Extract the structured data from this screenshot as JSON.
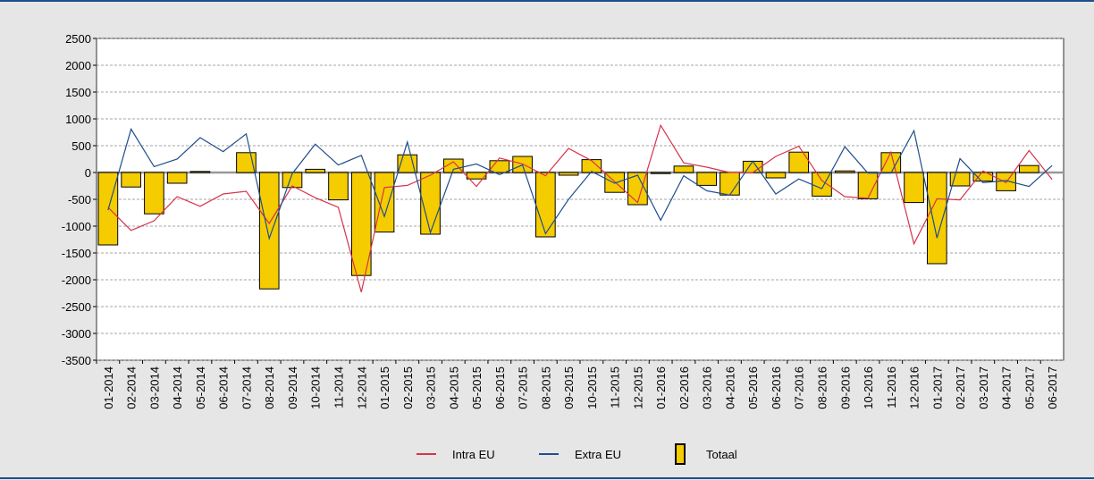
{
  "chart_data": {
    "type": "bar_line",
    "categories": [
      "01-2014",
      "02-2014",
      "03-2014",
      "04-2014",
      "05-2014",
      "06-2014",
      "07-2014",
      "08-2014",
      "09-2014",
      "10-2014",
      "11-2014",
      "12-2014",
      "01-2015",
      "02-2015",
      "03-2015",
      "04-2015",
      "05-2015",
      "06-2015",
      "07-2015",
      "08-2015",
      "09-2015",
      "10-2015",
      "11-2015",
      "12-2015",
      "01-2016",
      "02-2016",
      "03-2016",
      "04-2016",
      "05-2016",
      "06-2016",
      "07-2016",
      "08-2016",
      "09-2016",
      "10-2016",
      "11-2016",
      "12-2016",
      "01-2017",
      "02-2017",
      "03-2017",
      "04-2017",
      "05-2017",
      "06-2017"
    ],
    "series": [
      {
        "name": "Intra EU",
        "type": "line",
        "color": "#d6334a",
        "values": [
          -650,
          -1080,
          -900,
          -450,
          -630,
          -400,
          -350,
          -950,
          -250,
          -470,
          -650,
          -2230,
          -280,
          -240,
          -50,
          200,
          -260,
          270,
          160,
          -60,
          450,
          220,
          -170,
          -560,
          880,
          180,
          100,
          0,
          0,
          300,
          490,
          -150,
          -450,
          -480,
          380,
          -1330,
          -490,
          -510,
          30,
          -190,
          410,
          -130
        ]
      },
      {
        "name": "Extra EU",
        "type": "line",
        "color": "#1f4e8c",
        "values": [
          -700,
          810,
          110,
          250,
          650,
          390,
          720,
          -1230,
          -20,
          530,
          140,
          320,
          -820,
          570,
          -1120,
          60,
          160,
          -40,
          140,
          -1140,
          -500,
          20,
          -200,
          -50,
          -890,
          -60,
          -340,
          -420,
          210,
          -400,
          -120,
          -300,
          480,
          -10,
          -10,
          780,
          -1220,
          260,
          -190,
          -150,
          -260,
          130
        ]
      },
      {
        "name": "Totaal",
        "type": "bar",
        "color": "#f5cc00",
        "values": [
          -1350,
          -270,
          -770,
          -200,
          20,
          0,
          370,
          -2170,
          -280,
          60,
          -510,
          -1920,
          -1110,
          330,
          -1150,
          250,
          -120,
          220,
          300,
          -1200,
          -50,
          240,
          -370,
          -600,
          -20,
          120,
          -240,
          -420,
          210,
          -100,
          380,
          -440,
          30,
          -490,
          370,
          -560,
          -1700,
          -250,
          -160,
          -340,
          130,
          0
        ]
      }
    ],
    "ylim": [
      -3500,
      2500
    ],
    "yticks": [
      -3500,
      -3000,
      -2500,
      -2000,
      -1500,
      -1000,
      -500,
      0,
      500,
      1000,
      1500,
      2000,
      2500
    ],
    "grid": true,
    "legend": "bottom"
  }
}
